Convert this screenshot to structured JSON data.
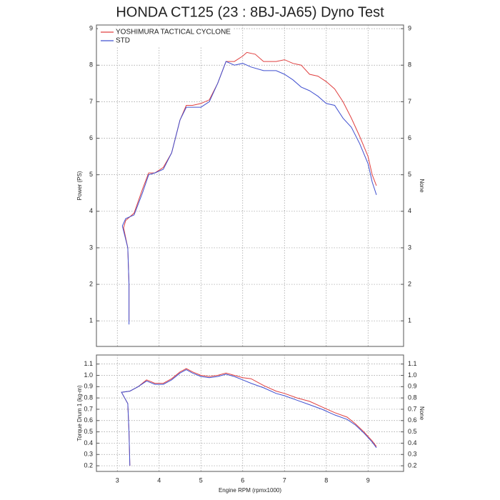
{
  "chart_data": [
    {
      "type": "line",
      "title": "HONDA CT125 (23 : 8BJ-JA65) Dyno Test",
      "ylabel": "Power (PS)",
      "y2label": "None",
      "xlim": [
        2.5,
        9.85
      ],
      "xticks": [
        3,
        4,
        5,
        6,
        7,
        8,
        9
      ],
      "ylim": [
        0.3,
        9.1
      ],
      "yticks": [
        1,
        2,
        3,
        4,
        5,
        6,
        7,
        8,
        9
      ],
      "y2lim": [
        0.3,
        9.1
      ],
      "y2ticks": [
        1,
        2,
        3,
        4,
        5,
        6,
        7,
        8,
        9
      ],
      "grid": true,
      "legend": "upper left",
      "series": [
        {
          "name": "YOSHIMURA TACTICAL CYCLONE",
          "color": "#e04040",
          "x": [
            3.28,
            3.28,
            3.25,
            3.15,
            3.2,
            3.4,
            3.6,
            3.75,
            3.9,
            4.1,
            4.3,
            4.5,
            4.65,
            4.8,
            5.0,
            5.2,
            5.4,
            5.6,
            5.8,
            6.0,
            6.1,
            6.3,
            6.5,
            6.8,
            7.0,
            7.2,
            7.4,
            7.6,
            7.8,
            8.0,
            8.2,
            8.4,
            8.6,
            8.8,
            9.0,
            9.1,
            9.2
          ],
          "values": [
            1.0,
            2.0,
            3.0,
            3.55,
            3.75,
            3.95,
            4.6,
            5.05,
            5.05,
            5.2,
            5.6,
            6.5,
            6.9,
            6.9,
            6.95,
            7.05,
            7.5,
            8.1,
            8.1,
            8.25,
            8.35,
            8.3,
            8.1,
            8.1,
            8.15,
            8.05,
            8.0,
            7.75,
            7.7,
            7.55,
            7.35,
            7.0,
            6.55,
            6.05,
            5.5,
            5.0,
            4.7
          ]
        },
        {
          "name": "STD",
          "color": "#4050d0",
          "x": [
            3.28,
            3.28,
            3.25,
            3.12,
            3.2,
            3.4,
            3.6,
            3.75,
            3.9,
            4.1,
            4.3,
            4.5,
            4.65,
            4.8,
            5.0,
            5.2,
            5.4,
            5.6,
            5.8,
            6.0,
            6.2,
            6.5,
            6.8,
            7.0,
            7.2,
            7.4,
            7.6,
            7.8,
            8.0,
            8.2,
            8.4,
            8.6,
            8.8,
            9.0,
            9.1,
            9.2
          ],
          "values": [
            0.9,
            2.0,
            3.0,
            3.6,
            3.8,
            3.9,
            4.5,
            5.0,
            5.05,
            5.15,
            5.6,
            6.5,
            6.85,
            6.85,
            6.85,
            7.0,
            7.5,
            8.1,
            8.0,
            8.05,
            7.95,
            7.85,
            7.85,
            7.75,
            7.6,
            7.4,
            7.3,
            7.15,
            6.95,
            6.9,
            6.55,
            6.3,
            5.85,
            5.3,
            4.8,
            4.45
          ]
        }
      ]
    },
    {
      "type": "line",
      "ylabel": "Torque Drum 1 (kg-m)",
      "y2label": "None",
      "xlabel": "Engine RPM (rpmx1000)",
      "xlim": [
        2.5,
        9.85
      ],
      "xticks": [
        3,
        4,
        5,
        6,
        7,
        8,
        9
      ],
      "ylim": [
        0.15,
        1.18
      ],
      "yticks": [
        0.2,
        0.3,
        0.4,
        0.5,
        0.6,
        0.7,
        0.8,
        0.9,
        {
          "value": 1,
          "label": "1.0"
        },
        1.1
      ],
      "y2lim": [
        0.15,
        1.18
      ],
      "y2ticks": [
        0.2,
        0.3,
        0.4,
        0.5,
        0.6,
        0.7,
        0.8,
        0.9,
        {
          "value": 1,
          "label": "1.0"
        },
        1.1
      ],
      "grid": true,
      "series": [
        {
          "color": "#e04040",
          "x": [
            3.3,
            3.28,
            3.25,
            3.1,
            3.3,
            3.5,
            3.7,
            3.9,
            4.1,
            4.3,
            4.5,
            4.65,
            4.8,
            5.0,
            5.2,
            5.4,
            5.6,
            5.8,
            6.0,
            6.2,
            6.5,
            6.8,
            7.0,
            7.3,
            7.6,
            7.9,
            8.2,
            8.5,
            8.7,
            8.9,
            9.1,
            9.2
          ],
          "values": [
            0.2,
            0.5,
            0.75,
            0.85,
            0.86,
            0.9,
            0.96,
            0.93,
            0.93,
            0.97,
            1.03,
            1.06,
            1.03,
            1.0,
            0.99,
            1.0,
            1.02,
            1.0,
            0.98,
            0.97,
            0.91,
            0.86,
            0.84,
            0.8,
            0.77,
            0.72,
            0.67,
            0.63,
            0.57,
            0.5,
            0.42,
            0.37
          ]
        },
        {
          "color": "#4050d0",
          "x": [
            3.3,
            3.28,
            3.25,
            3.1,
            3.3,
            3.5,
            3.7,
            3.9,
            4.1,
            4.3,
            4.5,
            4.65,
            4.8,
            5.0,
            5.2,
            5.4,
            5.6,
            5.8,
            6.0,
            6.2,
            6.5,
            6.8,
            7.0,
            7.3,
            7.6,
            7.9,
            8.2,
            8.5,
            8.7,
            8.9,
            9.1,
            9.2
          ],
          "values": [
            0.2,
            0.5,
            0.75,
            0.85,
            0.86,
            0.9,
            0.95,
            0.92,
            0.92,
            0.96,
            1.02,
            1.05,
            1.02,
            0.99,
            0.98,
            0.99,
            1.01,
            0.99,
            0.96,
            0.93,
            0.89,
            0.84,
            0.82,
            0.78,
            0.74,
            0.7,
            0.65,
            0.61,
            0.56,
            0.49,
            0.41,
            0.36
          ]
        }
      ]
    }
  ]
}
